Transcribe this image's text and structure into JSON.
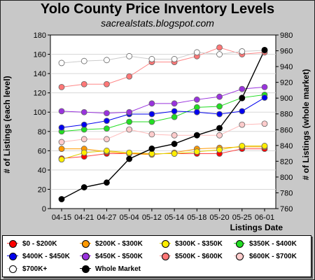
{
  "chart_data": {
    "type": "line",
    "title": "Yolo County Price Inventory Levels",
    "subtitle": "sacrealstats.blogspot.com",
    "xlabel": "Listings Date",
    "ylabel_left": "# of Listings (each level)",
    "ylabel_right": "# of Listings (whole market)",
    "categories": [
      "04-15",
      "04-21",
      "04-27",
      "05-04",
      "05-12",
      "05-14",
      "05-18",
      "05-20",
      "05-25",
      "06-01"
    ],
    "ylim_left": [
      0,
      180
    ],
    "yticks_left": [
      "0",
      "20",
      "40",
      "60",
      "80",
      "100",
      "120",
      "140",
      "160",
      "180"
    ],
    "ylim_right": [
      760,
      980
    ],
    "yticks_right": [
      "760",
      "780",
      "800",
      "820",
      "840",
      "860",
      "880",
      "900",
      "920",
      "940",
      "960",
      "980"
    ],
    "grid": "horizontal",
    "series": [
      {
        "name": "$0 - $200K",
        "color": "#ff0000",
        "line": "#ff4444",
        "axis": "left",
        "values": [
          52,
          54,
          57,
          57,
          57,
          57,
          57,
          57,
          62,
          62
        ]
      },
      {
        "name": "$200K - $300K",
        "color": "#ff9900",
        "line": "#ff9900",
        "axis": "left",
        "values": [
          62,
          62,
          59,
          57,
          56,
          58,
          62,
          63,
          64,
          64
        ]
      },
      {
        "name": "$300K - $350K",
        "color": "#ffee00",
        "line": "#e0d000",
        "axis": "left",
        "values": [
          51,
          58,
          60,
          58,
          57,
          57,
          59,
          61,
          65,
          65
        ]
      },
      {
        "name": "$350K - $400K",
        "color": "#22dd22",
        "line": "#22dd22",
        "axis": "left",
        "values": [
          80,
          82,
          83,
          90,
          90,
          95,
          105,
          106,
          115,
          118
        ]
      },
      {
        "name": "$400K - $450K",
        "color": "#0000ee",
        "line": "#0000ee",
        "axis": "left",
        "values": [
          84,
          87,
          91,
          98,
          98,
          101,
          100,
          98,
          101,
          115
        ]
      },
      {
        "name": "$450K - $500K",
        "color": "#9933dd",
        "line": "#9933dd",
        "axis": "left",
        "values": [
          101,
          100,
          99,
          100,
          109,
          109,
          113,
          116,
          124,
          126
        ]
      },
      {
        "name": "$500K - $600K",
        "color": "#ff7777",
        "line": "#ff8888",
        "axis": "left",
        "values": [
          126,
          129,
          129,
          137,
          152,
          152,
          158,
          167,
          160,
          162
        ]
      },
      {
        "name": "$600K - $700K",
        "color": "#ffcccc",
        "line": "#ffbbbb",
        "axis": "left",
        "values": [
          69,
          72,
          72,
          82,
          77,
          76,
          76,
          76,
          87,
          88
        ]
      },
      {
        "name": "$700K+",
        "color": "#ffffff",
        "line": "#cccccc",
        "axis": "left",
        "values": [
          151,
          153,
          154,
          158,
          155,
          155,
          162,
          160,
          163,
          164
        ]
      },
      {
        "name": "Whole Market",
        "color": "#000000",
        "line": "#000000",
        "axis": "right",
        "values": [
          772,
          787,
          793,
          823,
          836,
          842,
          853,
          862,
          900,
          961
        ]
      }
    ]
  }
}
